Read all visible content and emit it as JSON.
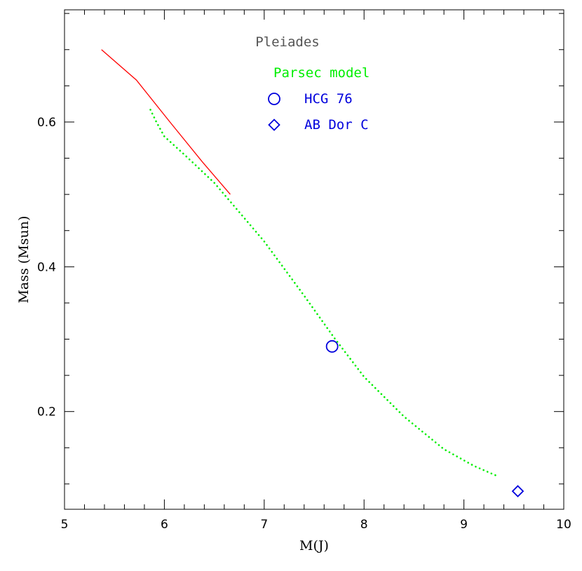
{
  "chart_data": {
    "type": "line",
    "title": "",
    "xlabel": "M(J)",
    "ylabel": "Mass (Msun)",
    "xlim": [
      5,
      10
    ],
    "ylim": [
      0.065,
      0.755
    ],
    "x_ticks": [
      5,
      6,
      7,
      8,
      9,
      10
    ],
    "y_ticks": [
      0.2,
      0.4,
      0.6
    ],
    "x_minor_step": 0.2,
    "y_minor_step": 0.05,
    "grid": false,
    "legend_placement": "top-center",
    "legend_title": "Pleiades",
    "legend_title_color": "#555555",
    "series": [
      {
        "name": "",
        "kind": "line",
        "style": "solid",
        "color": "#ff0000",
        "x": [
          5.37,
          5.72,
          6.05,
          6.38,
          6.66
        ],
        "y": [
          0.7,
          0.658,
          0.601,
          0.545,
          0.5
        ]
      },
      {
        "name": "Parsec model",
        "kind": "line",
        "style": "dotted",
        "color": "#00ee00",
        "x": [
          5.86,
          5.92,
          6.0,
          6.2,
          6.5,
          7.0,
          7.4,
          7.7,
          8.0,
          8.4,
          8.8,
          9.1,
          9.35
        ],
        "y": [
          0.617,
          0.6,
          0.58,
          0.555,
          0.516,
          0.435,
          0.36,
          0.302,
          0.248,
          0.193,
          0.148,
          0.125,
          0.11
        ]
      },
      {
        "name": "HCG 76",
        "kind": "marker",
        "marker": "circle",
        "color": "#0000dd",
        "x": [
          7.68
        ],
        "y": [
          0.29
        ]
      },
      {
        "name": "AB Dor C",
        "kind": "marker",
        "marker": "diamond",
        "color": "#0000dd",
        "x": [
          9.54
        ],
        "y": [
          0.09
        ]
      }
    ]
  }
}
